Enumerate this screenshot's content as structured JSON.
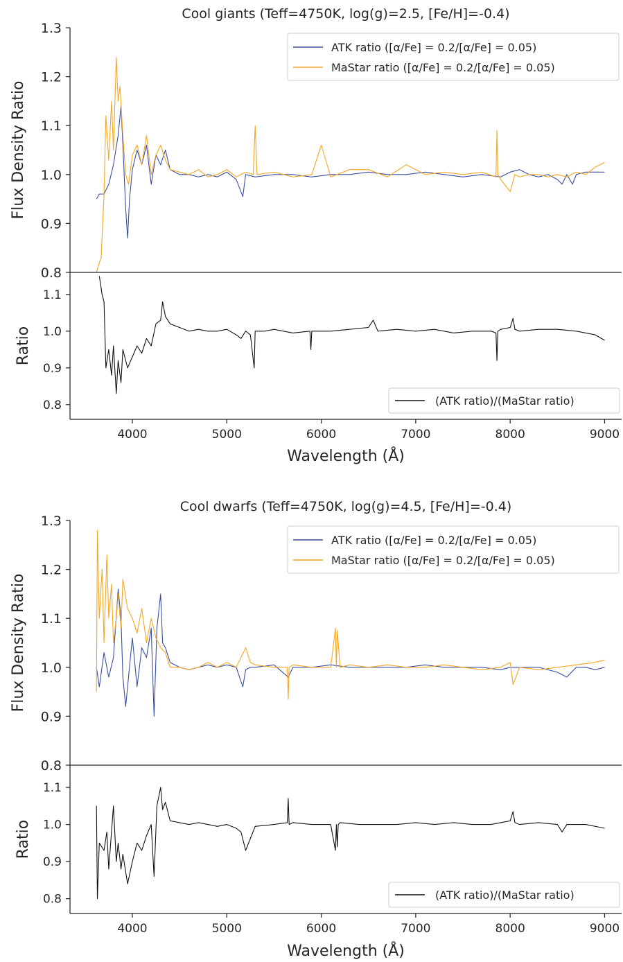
{
  "colors": {
    "atk": "#3a4ea0",
    "mastar": "#f5a623",
    "ratio": "#111111",
    "axes": "#262626"
  },
  "x_label": "Wavelength (Å)",
  "chart_data": [
    {
      "type": "line",
      "title": "Cool giants (Teff=4750K, log(g)=2.5, [Fe/H]=-0.4)",
      "main": {
        "ylabel": "Flux Density Ratio",
        "ylim": [
          0.8,
          1.3
        ],
        "yticks": [
          "0.8",
          "0.9",
          "1.0",
          "1.1",
          "1.2",
          "1.3"
        ],
        "series": [
          {
            "name": "ATK ratio ([α/Fe] = 0.2/[α/Fe] = 0.05)",
            "color": "atk",
            "x": [
              3620,
              3650,
              3700,
              3750,
              3800,
              3850,
              3880,
              3900,
              3930,
              3950,
              3970,
              4000,
              4050,
              4100,
              4150,
              4200,
              4250,
              4300,
              4350,
              4400,
              4500,
              4600,
              4700,
              4800,
              4900,
              5000,
              5100,
              5170,
              5200,
              5300,
              5500,
              5700,
              5900,
              6100,
              6300,
              6500,
              6700,
              6900,
              7100,
              7300,
              7500,
              7700,
              7900,
              8000,
              8100,
              8200,
              8300,
              8400,
              8500,
              8550,
              8600,
              8660,
              8700,
              8800,
              8900,
              9000
            ],
            "y": [
              0.95,
              0.96,
              0.96,
              0.98,
              1.02,
              1.08,
              1.14,
              1.06,
              0.93,
              0.87,
              0.95,
              1.01,
              1.05,
              1.02,
              1.06,
              0.98,
              1.04,
              1.02,
              1.05,
              1.01,
              1.0,
              1.0,
              0.995,
              1.0,
              0.995,
              1.005,
              0.99,
              0.955,
              1.0,
              0.995,
              1.0,
              1.0,
              0.995,
              1.0,
              1.0,
              1.005,
              1.0,
              1.0,
              1.005,
              1.0,
              0.995,
              1.0,
              0.995,
              1.005,
              1.01,
              1.0,
              0.995,
              1.0,
              0.99,
              0.98,
              1.0,
              0.98,
              1.0,
              1.005,
              1.005,
              1.005
            ]
          },
          {
            "name": "MaStar ratio ([α/Fe] = 0.2/[α/Fe] = 0.05)",
            "color": "mastar",
            "x": [
              3620,
              3650,
              3670,
              3700,
              3720,
              3750,
              3780,
              3800,
              3830,
              3850,
              3870,
              3900,
              3930,
              3960,
              4000,
              4050,
              4100,
              4150,
              4200,
              4250,
              4300,
              4350,
              4400,
              4500,
              4600,
              4700,
              4800,
              4900,
              5000,
              5100,
              5200,
              5280,
              5300,
              5320,
              5500,
              5700,
              5900,
              6000,
              6100,
              6300,
              6500,
              6700,
              6900,
              7100,
              7300,
              7500,
              7700,
              7850,
              7860,
              7870,
              7900,
              8000,
              8050,
              8100,
              8200,
              8300,
              8400,
              8500,
              8600,
              8700,
              8800,
              8900,
              9000
            ],
            "y": [
              0.8,
              0.82,
              0.83,
              0.96,
              1.12,
              1.03,
              1.15,
              1.05,
              1.24,
              1.15,
              1.18,
              1.08,
              1.0,
              0.98,
              1.04,
              1.06,
              1.02,
              1.08,
              1.0,
              1.04,
              1.06,
              1.03,
              1.01,
              1.005,
              1.0,
              1.01,
              0.995,
              1.0,
              1.01,
              0.995,
              1.005,
              1.0,
              1.1,
              1.0,
              1.005,
              0.995,
              1.0,
              1.06,
              0.995,
              1.01,
              1.01,
              0.995,
              1.02,
              1.0,
              1.005,
              1.0,
              1.005,
              0.995,
              1.09,
              1.0,
              0.99,
              0.965,
              1.0,
              0.995,
              1.0,
              1.0,
              0.995,
              1.0,
              0.995,
              1.005,
              1.0,
              1.015,
              1.025
            ]
          }
        ]
      },
      "sub": {
        "ylabel": "Ratio",
        "ylim": [
          0.76,
          1.16
        ],
        "yticks": [
          "0.8",
          "0.9",
          "1.0",
          "1.1"
        ],
        "series": [
          {
            "name": "(ATK ratio)/(MaStar ratio)",
            "color": "ratio",
            "x": [
              3650,
              3680,
              3700,
              3720,
              3750,
              3780,
              3800,
              3830,
              3850,
              3880,
              3900,
              3950,
              4000,
              4050,
              4100,
              4150,
              4200,
              4250,
              4300,
              4320,
              4350,
              4400,
              4500,
              4600,
              4700,
              4800,
              4900,
              5000,
              5100,
              5150,
              5200,
              5250,
              5290,
              5300,
              5400,
              5500,
              5700,
              5880,
              5890,
              5900,
              6100,
              6300,
              6500,
              6550,
              6600,
              6800,
              7000,
              7200,
              7400,
              7600,
              7800,
              7850,
              7860,
              7870,
              7900,
              8000,
              8030,
              8050,
              8100,
              8300,
              8500,
              8700,
              8800,
              8900,
              9000
            ],
            "y": [
              1.15,
              1.1,
              1.08,
              0.9,
              0.95,
              0.88,
              0.96,
              0.83,
              0.92,
              0.86,
              0.95,
              0.9,
              0.93,
              0.96,
              0.94,
              0.98,
              0.96,
              1.02,
              1.03,
              1.08,
              1.04,
              1.02,
              1.01,
              1.0,
              1.005,
              1.0,
              1.0,
              1.005,
              0.99,
              0.98,
              1.0,
              0.99,
              0.9,
              1.0,
              1.0,
              1.005,
              0.995,
              1.0,
              0.95,
              1.0,
              1.0,
              1.005,
              1.01,
              1.03,
              1.0,
              1.005,
              1.0,
              1.005,
              0.995,
              1.0,
              1.0,
              0.995,
              0.92,
              1.0,
              1.005,
              1.01,
              1.035,
              1.005,
              1.0,
              1.005,
              1.005,
              1.0,
              0.995,
              0.99,
              0.975
            ]
          }
        ],
        "legend_position": "lower-right"
      },
      "xlim": [
        3340,
        9180
      ],
      "xticks": [
        "4000",
        "5000",
        "6000",
        "7000",
        "8000",
        "9000"
      ],
      "legend_position": "top-right"
    },
    {
      "type": "line",
      "title": "Cool dwarfs (Teff=4750K, log(g)=4.5, [Fe/H]=-0.4)",
      "main": {
        "ylabel": "Flux Density Ratio",
        "ylim": [
          0.8,
          1.3
        ],
        "yticks": [
          "0.8",
          "0.9",
          "1.0",
          "1.1",
          "1.2",
          "1.3"
        ],
        "series": [
          {
            "name": "ATK ratio ([α/Fe] = 0.2/[α/Fe] = 0.05)",
            "color": "atk",
            "x": [
              3620,
              3650,
              3700,
              3750,
              3800,
              3850,
              3880,
              3900,
              3930,
              3950,
              3980,
              4000,
              4050,
              4100,
              4150,
              4200,
              4230,
              4260,
              4300,
              4320,
              4350,
              4400,
              4500,
              4600,
              4700,
              4800,
              4900,
              5000,
              5100,
              5170,
              5200,
              5250,
              5300,
              5500,
              5650,
              5700,
              5900,
              6100,
              6300,
              6500,
              6700,
              6900,
              7100,
              7300,
              7500,
              7700,
              7900,
              8000,
              8100,
              8300,
              8500,
              8600,
              8700,
              8800,
              8900,
              9000
            ],
            "y": [
              1.0,
              0.96,
              1.03,
              0.98,
              1.02,
              1.16,
              1.1,
              0.98,
              0.92,
              0.96,
              1.02,
              1.06,
              0.96,
              1.04,
              1.02,
              1.08,
              0.9,
              1.08,
              1.15,
              1.05,
              1.04,
              1.01,
              1.0,
              0.995,
              1.0,
              1.005,
              1.0,
              1.005,
              1.0,
              0.96,
              0.995,
              1.0,
              1.0,
              1.005,
              0.98,
              1.0,
              1.0,
              1.005,
              1.0,
              1.0,
              1.0,
              1.0,
              1.005,
              1.0,
              1.0,
              1.0,
              0.995,
              1.0,
              1.0,
              1.0,
              0.99,
              0.98,
              1.0,
              1.0,
              0.995,
              1.0
            ]
          },
          {
            "name": "MaStar ratio ([α/Fe] = 0.2/[α/Fe] = 0.05)",
            "color": "mastar",
            "x": [
              3620,
              3630,
              3650,
              3680,
              3700,
              3730,
              3750,
              3780,
              3800,
              3830,
              3850,
              3880,
              3900,
              3950,
              4000,
              4050,
              4100,
              4150,
              4200,
              4250,
              4300,
              4350,
              4400,
              4500,
              4600,
              4700,
              4800,
              4900,
              5000,
              5100,
              5150,
              5200,
              5250,
              5300,
              5500,
              5640,
              5650,
              5660,
              5700,
              5900,
              6100,
              6150,
              6160,
              6170,
              6200,
              6300,
              6500,
              6700,
              6900,
              7100,
              7300,
              7500,
              7700,
              7900,
              8000,
              8030,
              8100,
              8300,
              8500,
              8700,
              8900,
              9000
            ],
            "y": [
              0.95,
              1.28,
              1.1,
              1.2,
              1.05,
              1.23,
              1.1,
              1.17,
              1.05,
              1.1,
              1.15,
              1.08,
              1.18,
              1.12,
              1.1,
              1.07,
              1.12,
              1.05,
              1.1,
              1.06,
              1.04,
              1.03,
              1.0,
              1.0,
              0.995,
              1.0,
              1.01,
              1.0,
              1.01,
              1.0,
              1.02,
              1.04,
              1.01,
              1.005,
              1.0,
              1.0,
              0.935,
              1.0,
              1.005,
              1.0,
              1.0,
              1.08,
              1.0,
              1.075,
              1.0,
              1.005,
              1.0,
              1.005,
              1.0,
              1.0,
              1.005,
              1.0,
              0.995,
              1.0,
              1.01,
              0.965,
              1.0,
              0.995,
              1.0,
              1.005,
              1.01,
              1.015
            ]
          }
        ]
      },
      "sub": {
        "ylabel": "Ratio",
        "ylim": [
          0.76,
          1.16
        ],
        "yticks": [
          "0.8",
          "0.9",
          "1.0",
          "1.1"
        ],
        "series": [
          {
            "name": "(ATK ratio)/(MaStar ratio)",
            "color": "ratio",
            "x": [
              3620,
              3630,
              3650,
              3700,
              3730,
              3750,
              3800,
              3830,
              3850,
              3880,
              3900,
              3950,
              4000,
              4050,
              4100,
              4150,
              4200,
              4230,
              4260,
              4300,
              4320,
              4350,
              4400,
              4500,
              4600,
              4700,
              4800,
              4900,
              5000,
              5100,
              5150,
              5200,
              5300,
              5500,
              5640,
              5650,
              5660,
              5700,
              5900,
              6100,
              6150,
              6160,
              6170,
              6180,
              6200,
              6400,
              6600,
              6800,
              7000,
              7200,
              7400,
              7600,
              7800,
              8000,
              8030,
              8050,
              8100,
              8300,
              8500,
              8550,
              8600,
              8800,
              9000
            ],
            "y": [
              1.05,
              0.8,
              0.95,
              0.93,
              0.98,
              0.88,
              1.05,
              0.9,
              0.95,
              0.88,
              0.92,
              0.84,
              0.9,
              0.95,
              0.93,
              0.97,
              1.0,
              0.86,
              1.05,
              1.1,
              1.04,
              1.06,
              1.01,
              1.005,
              1.0,
              1.005,
              1.0,
              0.995,
              1.0,
              0.99,
              0.98,
              0.93,
              0.995,
              1.0,
              1.005,
              1.07,
              1.0,
              1.005,
              1.0,
              1.0,
              0.93,
              1.0,
              0.94,
              1.0,
              1.005,
              1.0,
              1.0,
              1.0,
              1.005,
              1.0,
              1.005,
              1.0,
              1.0,
              1.01,
              1.035,
              1.005,
              1.0,
              1.005,
              1.0,
              0.98,
              1.0,
              1.0,
              0.99
            ]
          }
        ],
        "legend_position": "lower-right"
      },
      "xlim": [
        3340,
        9180
      ],
      "xticks": [
        "4000",
        "5000",
        "6000",
        "7000",
        "8000",
        "9000"
      ],
      "legend_position": "top-right"
    }
  ]
}
